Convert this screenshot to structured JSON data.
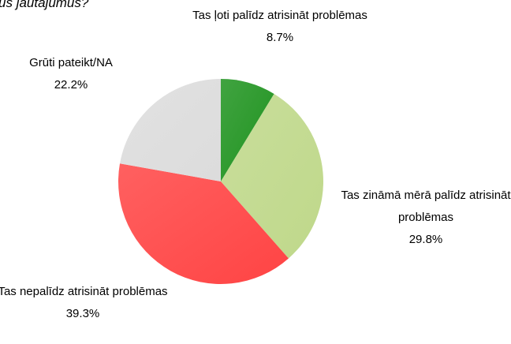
{
  "chart_data": {
    "type": "pie",
    "title": "us jautājumus?",
    "categories": [
      "Tas ļoti palīdz atrisināt problēmas",
      "Tas zināmā mērā palīdz atrisināt problēmas",
      "Tas nepalīdz atrisināt problēmas",
      "Grūti pateikt/NA"
    ],
    "values": [
      8.7,
      29.8,
      39.3,
      22.2
    ],
    "value_labels": [
      "8.7%",
      "29.8%",
      "39.3%",
      "22.2%"
    ],
    "colors": [
      "#1f931f",
      "#bfd88a",
      "#ff4444",
      "#dcdcdc"
    ]
  }
}
